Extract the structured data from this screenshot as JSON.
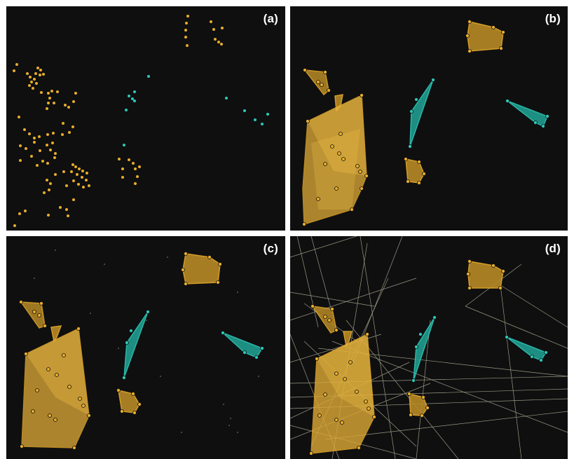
{
  "panels": [
    {
      "id": "a",
      "label": "(a)"
    },
    {
      "id": "b",
      "label": "(b)"
    },
    {
      "id": "c",
      "label": "(c)"
    },
    {
      "id": "d",
      "label": "(d)"
    }
  ],
  "colors": {
    "background": "#0f0f10",
    "gold": "#e8ad2a",
    "gold_fill": "#caa033",
    "teal": "#2ec8b8",
    "teal_fill": "#1f9c8e",
    "edge": "#c9c6a8"
  }
}
